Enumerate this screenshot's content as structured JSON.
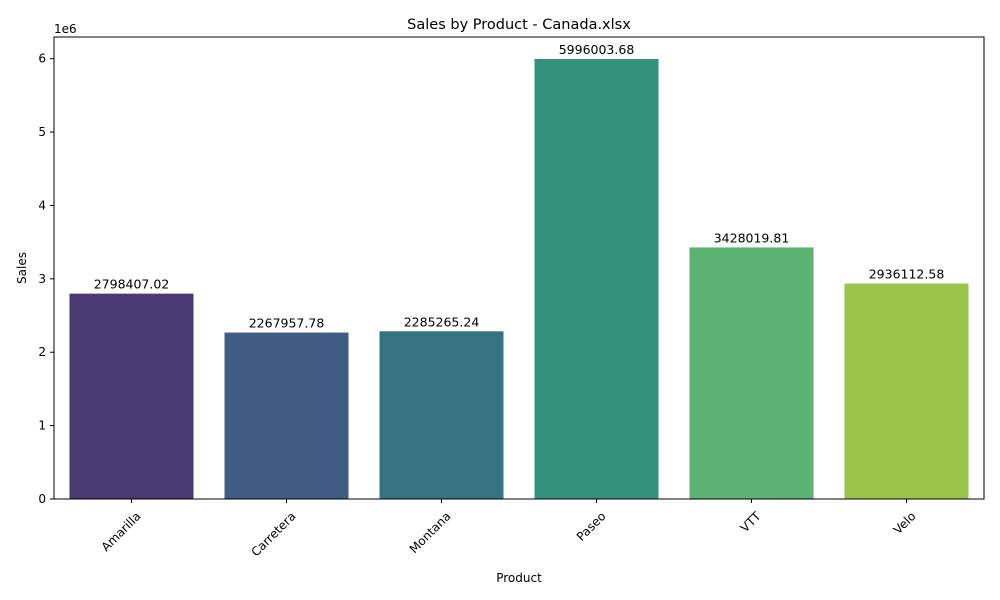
{
  "chart_data": {
    "type": "bar",
    "title": "Sales by Product - Canada.xlsx",
    "xlabel": "Product",
    "ylabel": "Sales",
    "y_multiplier_label": "1e6",
    "y_scale": 1000000,
    "ylim": [
      0,
      6295803.864
    ],
    "y_ticks": [
      0,
      1,
      2,
      3,
      4,
      5,
      6
    ],
    "y_tick_labels": [
      "0",
      "1",
      "2",
      "3",
      "4",
      "5",
      "6"
    ],
    "x_tick_rotation_deg": 45,
    "grid": false,
    "legend": "none",
    "categories": [
      "Amarilla",
      "Carretera",
      "Montana",
      "Paseo",
      "VTT",
      "Velo"
    ],
    "values": [
      2798407.02,
      2267957.78,
      2285265.24,
      5996003.68,
      3428019.81,
      2936112.58
    ],
    "value_labels": [
      "2798407.02",
      "2267957.78",
      "2285265.24",
      "5996003.68",
      "3428019.81",
      "2936112.58"
    ],
    "colors": [
      "#4a3a73",
      "#3f5c83",
      "#357380",
      "#33917e",
      "#5bb272",
      "#9ac54a"
    ]
  }
}
